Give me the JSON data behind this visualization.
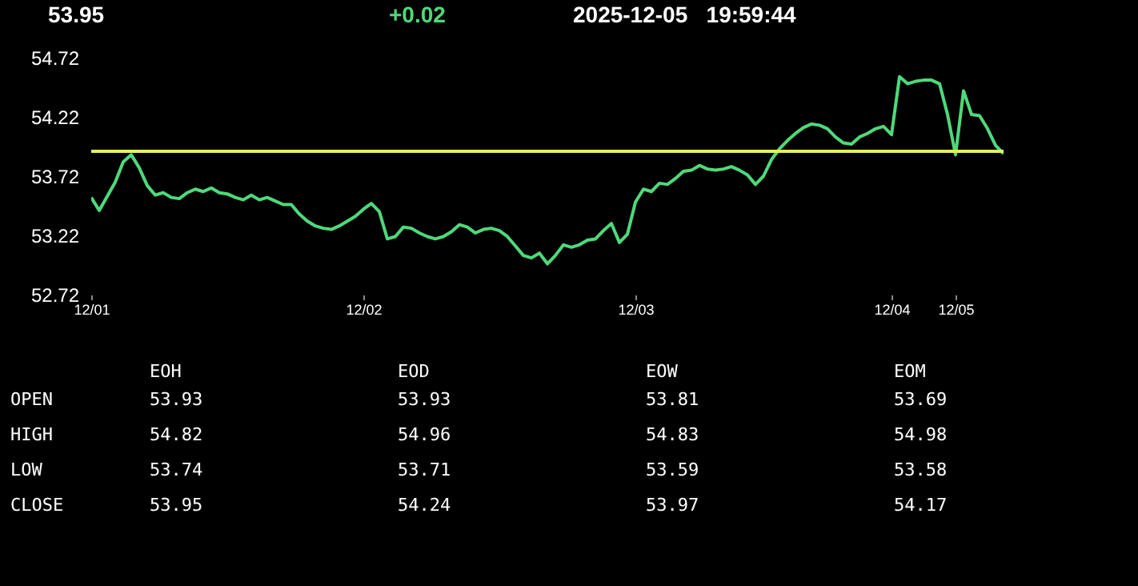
{
  "chart_data": [
    {
      "type": "line",
      "title": "53.95",
      "subtitle": "+0.02",
      "annotations": [
        "2025-12-05   19:59:44"
      ],
      "categories": [
        "12/01",
        null,
        null,
        null,
        null,
        null,
        null,
        null,
        null,
        null,
        null,
        null,
        null,
        null,
        null,
        null,
        null,
        null,
        null,
        null,
        null,
        null,
        null,
        null,
        null,
        null,
        null,
        null,
        null,
        null,
        null,
        null,
        null,
        null,
        "12/02",
        null,
        null,
        null,
        null,
        null,
        null,
        null,
        null,
        null,
        null,
        null,
        null,
        null,
        null,
        null,
        null,
        null,
        null,
        null,
        null,
        null,
        null,
        null,
        null,
        null,
        null,
        null,
        null,
        null,
        null,
        null,
        null,
        null,
        "12/03",
        null,
        null,
        null,
        null,
        null,
        null,
        null,
        null,
        null,
        null,
        null,
        null,
        null,
        null,
        null,
        null,
        null,
        null,
        null,
        null,
        null,
        null,
        null,
        null,
        null,
        null,
        null,
        null,
        null,
        null,
        null,
        "12/04",
        null,
        null,
        null,
        null,
        null,
        null,
        null,
        "12/05",
        null,
        null,
        null,
        null,
        null,
        null
      ],
      "series": [
        {
          "color": "#4fd97a",
          "values": [
            53.54,
            53.43,
            53.55,
            53.67,
            53.84,
            53.9,
            53.79,
            53.64,
            53.56,
            53.58,
            53.54,
            53.53,
            53.58,
            53.61,
            53.59,
            53.62,
            53.58,
            53.57,
            53.54,
            53.52,
            53.56,
            53.52,
            53.54,
            53.51,
            53.48,
            53.48,
            53.4,
            53.34,
            53.3,
            53.28,
            53.27,
            53.3,
            53.34,
            53.38,
            53.44,
            53.49,
            53.42,
            53.19,
            53.21,
            53.29,
            53.28,
            53.24,
            53.21,
            53.19,
            53.21,
            53.25,
            53.31,
            53.29,
            53.24,
            53.27,
            53.28,
            53.26,
            53.21,
            53.13,
            53.05,
            53.03,
            53.07,
            52.98,
            53.05,
            53.14,
            53.12,
            53.14,
            53.18,
            53.19,
            53.26,
            53.32,
            53.16,
            53.23,
            53.5,
            53.61,
            53.59,
            53.66,
            53.65,
            53.7,
            53.76,
            53.77,
            53.81,
            53.78,
            53.77,
            53.78,
            53.8,
            53.77,
            53.73,
            53.65,
            53.72,
            53.86,
            53.95,
            54.02,
            54.08,
            54.13,
            54.16,
            54.15,
            54.12,
            54.05,
            54,
            53.99,
            54.05,
            54.08,
            54.12,
            54.14,
            54.07,
            54.56,
            54.5,
            54.52,
            54.53,
            54.53,
            54.5,
            54.24,
            53.9,
            54.44,
            54.24,
            54.23,
            54.12,
            53.98,
            53.91
          ]
        }
      ],
      "ylim": [
        52.72,
        54.72
      ],
      "yticks": [
        52.72,
        53.22,
        53.72,
        54.22,
        54.72
      ],
      "ref_lines": [
        {
          "axis": "y",
          "value": 53.93,
          "color": "#e6f05a"
        }
      ]
    },
    {
      "type": "heatmap",
      "categories": [
        "EOH",
        "EOD",
        "EOW",
        "EOM"
      ],
      "y_categories": [
        "OPEN",
        "HIGH",
        "LOW",
        "CLOSE"
      ],
      "cells": [
        [
          53.93,
          53.93,
          53.81,
          53.69
        ],
        [
          54.82,
          54.96,
          54.83,
          54.98
        ],
        [
          53.74,
          53.71,
          53.59,
          53.58
        ],
        [
          53.95,
          54.24,
          53.97,
          54.17
        ]
      ],
      "data_labels": true
    }
  ]
}
